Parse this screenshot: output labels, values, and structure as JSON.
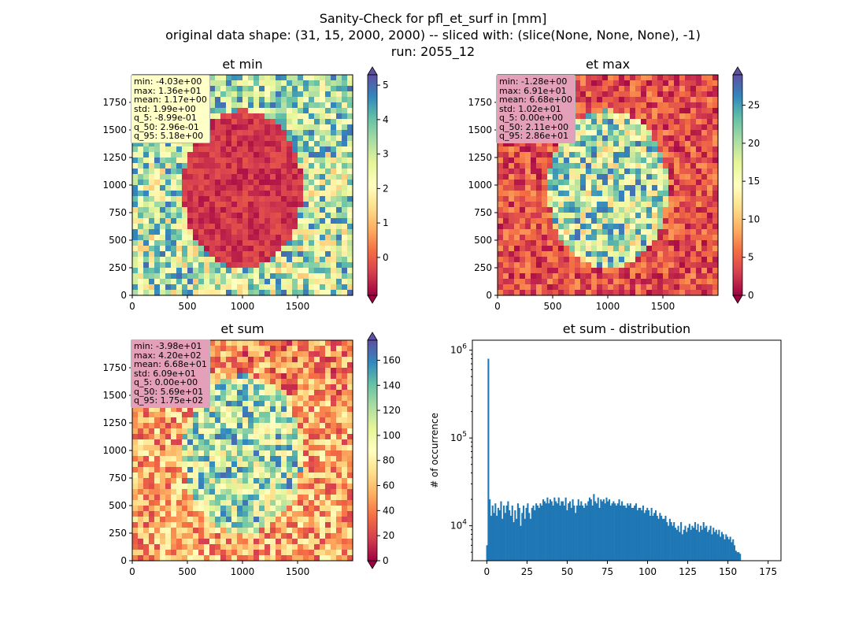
{
  "figure": {
    "title_lines": [
      "Sanity-Check for pfl_et_surf in [mm]",
      "original data shape: (31, 15, 2000, 2000) -- sliced with: (slice(None, None, None), -1)",
      "run: 2055_12"
    ]
  },
  "panels": {
    "et_min": {
      "title": "et min",
      "stats": [
        "min: -4.03e+00",
        "max: 1.36e+01",
        "mean: 1.17e+00",
        "std: 1.99e+00",
        "q_5: -8.99e-01",
        "q_50: 2.96e-01",
        "q_95: 5.18e+00"
      ],
      "stats_bg": "#ffffc8"
    },
    "et_max": {
      "title": "et max",
      "stats": [
        "min: -1.28e+00",
        "max: 6.91e+01",
        "mean: 6.68e+00",
        "std: 1.02e+01",
        "q_5: 0.00e+00",
        "q_50: 2.11e+00",
        "q_95: 2.86e+01"
      ],
      "stats_bg": "#e4a0b8"
    },
    "et_sum": {
      "title": "et sum",
      "stats": [
        "min: -3.98e+01",
        "max: 4.20e+02",
        "mean: 6.68e+01",
        "std: 6.09e+01",
        "q_5: 0.00e+00",
        "q_50: 5.69e+01",
        "q_95: 1.75e+02"
      ],
      "stats_bg": "#e4a0b8"
    },
    "et_dist": {
      "title": "et sum - distribution"
    }
  },
  "colors": {
    "hist_bar": "#1f77b4",
    "spectral": [
      "#9e0142",
      "#d53e4f",
      "#f46d43",
      "#fdae61",
      "#fee08b",
      "#ffffbf",
      "#e6f598",
      "#abdda4",
      "#66c2a5",
      "#3288bd",
      "#5e4fa2"
    ]
  },
  "chart_data": [
    {
      "type": "heatmap",
      "title": "et min",
      "x_ticks": [
        "0",
        "500",
        "1000",
        "1500"
      ],
      "y_ticks": [
        "0",
        "250",
        "500",
        "750",
        "1000",
        "1250",
        "1500",
        "1750"
      ],
      "xlim": [
        0,
        2000
      ],
      "ylim": [
        0,
        2000
      ],
      "colormap": "Spectral",
      "colorbar": {
        "range": [
          -1.1,
          5.3
        ],
        "ticks": [
          0,
          1,
          2,
          3,
          4,
          5
        ],
        "tick_labels": [
          "0",
          "1",
          "2",
          "3",
          "4",
          "5"
        ],
        "extend": "both"
      }
    },
    {
      "type": "heatmap",
      "title": "et max",
      "x_ticks": [
        "0",
        "500",
        "1000",
        "1500"
      ],
      "y_ticks": [
        "0",
        "250",
        "500",
        "750",
        "1000",
        "1250",
        "1500",
        "1750"
      ],
      "xlim": [
        0,
        2000
      ],
      "ylim": [
        0,
        2000
      ],
      "colormap": "Spectral",
      "colorbar": {
        "range": [
          0,
          29
        ],
        "ticks": [
          0,
          5,
          10,
          15,
          20,
          25
        ],
        "tick_labels": [
          "0",
          "5",
          "10",
          "15",
          "20",
          "25"
        ],
        "extend": "both"
      }
    },
    {
      "type": "heatmap",
      "title": "et sum",
      "x_ticks": [
        "0",
        "500",
        "1000",
        "1500"
      ],
      "y_ticks": [
        "0",
        "250",
        "500",
        "750",
        "1000",
        "1250",
        "1500",
        "1750"
      ],
      "xlim": [
        0,
        2000
      ],
      "ylim": [
        0,
        2000
      ],
      "colormap": "Spectral",
      "colorbar": {
        "range": [
          0,
          176
        ],
        "ticks": [
          0,
          20,
          40,
          60,
          80,
          100,
          120,
          140,
          160
        ],
        "tick_labels": [
          "0",
          "20",
          "40",
          "60",
          "80",
          "100",
          "120",
          "140",
          "160"
        ],
        "extend": "both"
      }
    },
    {
      "type": "bar",
      "title": "et sum - distribution",
      "ylabel": "# of occurrence",
      "xlabel": "",
      "yscale": "log",
      "xlim": [
        -9,
        183
      ],
      "ylim": [
        4000,
        1300000
      ],
      "x_ticks": [
        0,
        25,
        50,
        75,
        100,
        125,
        150,
        175
      ],
      "x_tick_labels": [
        "0",
        "25",
        "50",
        "75",
        "100",
        "125",
        "150",
        "175"
      ],
      "y_ticks": [
        10000,
        100000,
        1000000
      ],
      "y_tick_labels": [
        "10^4",
        "10^5",
        "10^6"
      ],
      "bin_start": -0.4,
      "bin_width": 0.875,
      "values": [
        6000,
        800000,
        20000,
        13000,
        17000,
        14000,
        18000,
        13000,
        16000,
        15000,
        19000,
        12000,
        17000,
        14000,
        17000,
        19000,
        15000,
        13000,
        17000,
        11000,
        15000,
        12000,
        18000,
        16000,
        10000,
        14000,
        17000,
        12000,
        16000,
        18000,
        14000,
        12000,
        16000,
        17000,
        15000,
        18000,
        17000,
        16000,
        18000,
        17000,
        20000,
        19000,
        18000,
        21000,
        18000,
        20000,
        19000,
        17000,
        21000,
        19000,
        18000,
        21000,
        17000,
        19000,
        19000,
        17000,
        21000,
        15000,
        18000,
        19000,
        16000,
        20000,
        17000,
        14000,
        17000,
        20000,
        17000,
        19000,
        17000,
        16000,
        18000,
        17000,
        19000,
        21000,
        20000,
        17000,
        23000,
        19000,
        18000,
        21000,
        16000,
        20000,
        19000,
        20000,
        18000,
        21000,
        19000,
        20000,
        17000,
        18000,
        19000,
        18000,
        17000,
        18000,
        20000,
        17000,
        19000,
        17000,
        17000,
        16000,
        18000,
        17000,
        18000,
        16000,
        16000,
        17000,
        18000,
        15000,
        16000,
        16000,
        15000,
        17000,
        14000,
        15000,
        16000,
        15000,
        13000,
        16000,
        13000,
        14000,
        15000,
        13000,
        12000,
        14000,
        13000,
        12000,
        12000,
        13000,
        11000,
        10000,
        12000,
        11000,
        10000,
        11000,
        9500,
        9000,
        10000,
        8500,
        11000,
        8000,
        9000,
        10000,
        8500,
        9500,
        10500,
        9000,
        10000,
        9500,
        11000,
        9000,
        10500,
        8500,
        10000,
        9000,
        11000,
        9500,
        10000,
        8500,
        9000,
        10000,
        8000,
        9500,
        8500,
        9000,
        8000,
        9000,
        7500,
        8500,
        8000,
        7000,
        8000,
        7500,
        7000,
        7500,
        6500,
        7000,
        6000,
        5200,
        5000,
        5000,
        4800
      ]
    }
  ]
}
